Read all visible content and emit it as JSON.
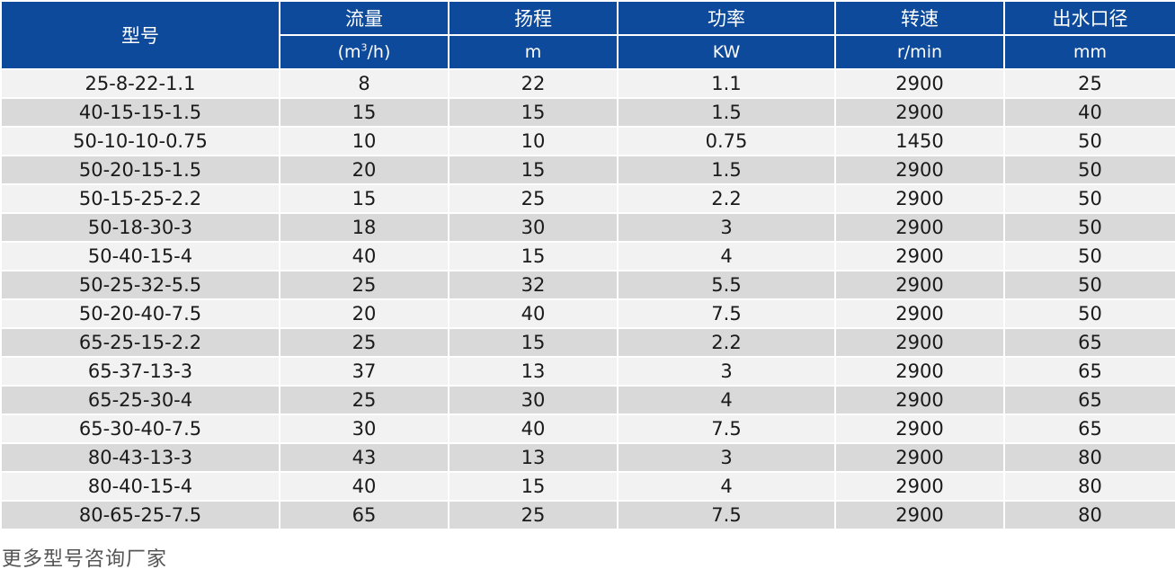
{
  "table": {
    "headers": {
      "model": "型号",
      "flow": "流量",
      "head": "扬程",
      "power": "功率",
      "speed": "转速",
      "outlet": "出水口径"
    },
    "units": {
      "flow_prefix": "(m",
      "flow_sup": "3",
      "flow_suffix": "/h)",
      "head": "m",
      "power": "KW",
      "speed": "r/min",
      "outlet": "mm"
    },
    "rows": [
      [
        "25-8-22-1.1",
        "8",
        "22",
        "1.1",
        "2900",
        "25"
      ],
      [
        "40-15-15-1.5",
        "15",
        "15",
        "1.5",
        "2900",
        "40"
      ],
      [
        "50-10-10-0.75",
        "10",
        "10",
        "0.75",
        "1450",
        "50"
      ],
      [
        "50-20-15-1.5",
        "20",
        "15",
        "1.5",
        "2900",
        "50"
      ],
      [
        "50-15-25-2.2",
        "15",
        "25",
        "2.2",
        "2900",
        "50"
      ],
      [
        "50-18-30-3",
        "18",
        "30",
        "3",
        "2900",
        "50"
      ],
      [
        "50-40-15-4",
        "40",
        "15",
        "4",
        "2900",
        "50"
      ],
      [
        "50-25-32-5.5",
        "25",
        "32",
        "5.5",
        "2900",
        "50"
      ],
      [
        "50-20-40-7.5",
        "20",
        "40",
        "7.5",
        "2900",
        "50"
      ],
      [
        "65-25-15-2.2",
        "25",
        "15",
        "2.2",
        "2900",
        "65"
      ],
      [
        "65-37-13-3",
        "37",
        "13",
        "3",
        "2900",
        "65"
      ],
      [
        "65-25-30-4",
        "25",
        "30",
        "4",
        "2900",
        "65"
      ],
      [
        "65-30-40-7.5",
        "30",
        "40",
        "7.5",
        "2900",
        "65"
      ],
      [
        "80-43-13-3",
        "43",
        "13",
        "3",
        "2900",
        "80"
      ],
      [
        "80-40-15-4",
        "40",
        "15",
        "4",
        "2900",
        "80"
      ],
      [
        "80-65-25-7.5",
        "65",
        "25",
        "7.5",
        "2900",
        "80"
      ]
    ]
  },
  "footer": {
    "more_text": "更多型号咨询厂家"
  },
  "colors": {
    "header_bg": "#0d4a9b",
    "row_light": "#f2f2f2",
    "row_dark": "#d9d9d9"
  }
}
